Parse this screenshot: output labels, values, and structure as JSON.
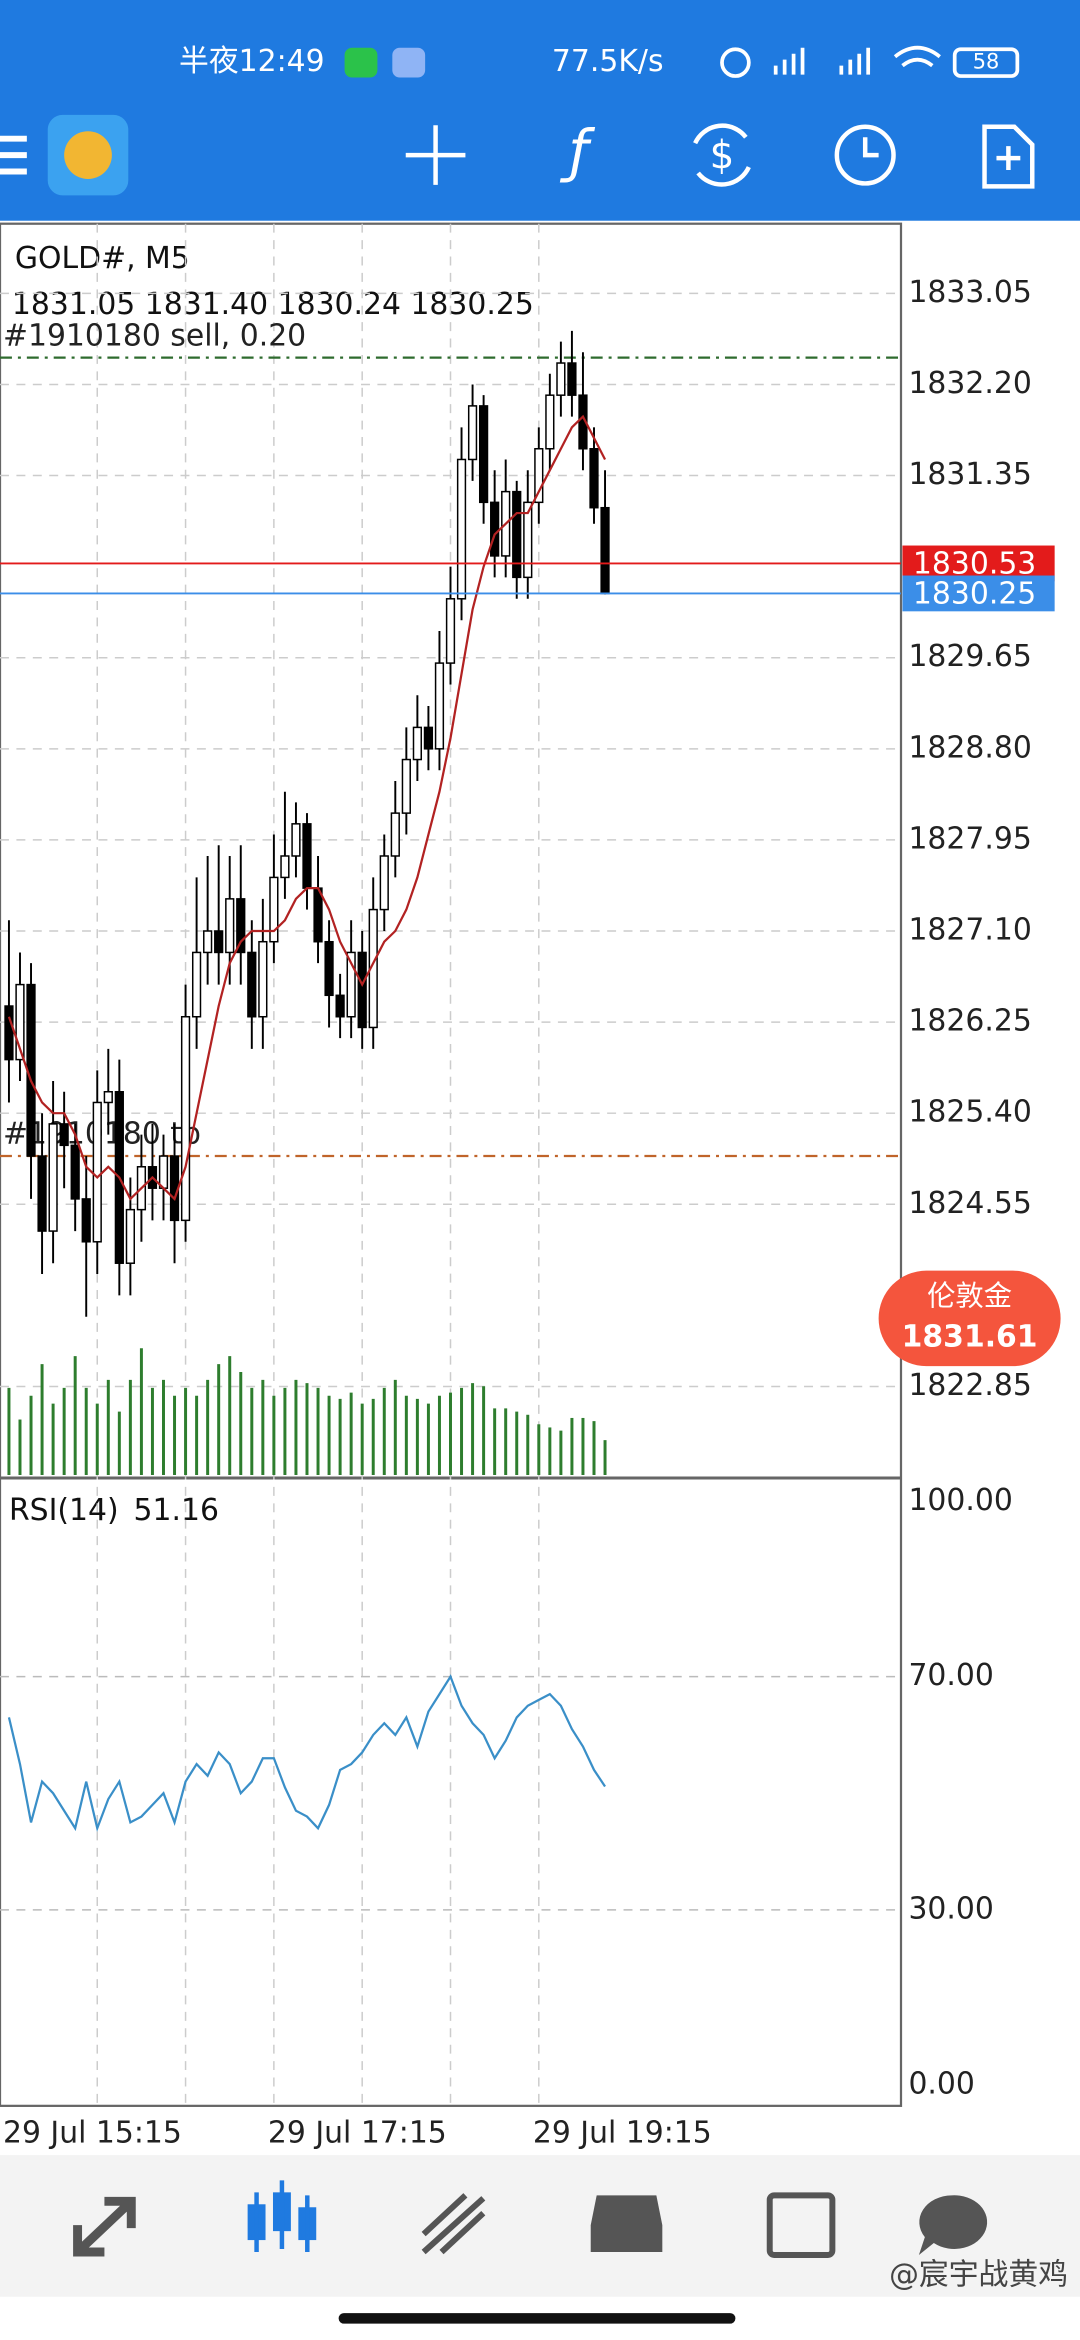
{
  "status_bar": {
    "time": "半夜12:49",
    "speed": "77.5K/s",
    "battery": "58"
  },
  "chart_data": [
    {
      "type": "candlestick",
      "title": "GOLD#, M5",
      "ohlc_label": "1831.05 1831.40 1830.24 1830.25",
      "categories": [
        "29 Jul 15:15",
        null,
        null,
        null,
        null,
        null,
        null,
        null,
        null,
        null,
        null,
        null,
        null,
        null,
        null,
        null,
        null,
        null,
        null,
        null,
        null,
        null,
        null,
        null,
        "29 Jul 17:15",
        null,
        null,
        null,
        null,
        null,
        null,
        null,
        null,
        null,
        null,
        null,
        null,
        null,
        null,
        null,
        null,
        null,
        null,
        null,
        null,
        null,
        null,
        null,
        "29 Jul 19:15",
        null,
        null,
        null,
        null,
        null,
        null
      ],
      "open": [
        1826.4,
        1825.9,
        1826.6,
        1825.0,
        1824.3,
        1825.3,
        1825.1,
        1824.6,
        1824.2,
        1825.5,
        1825.6,
        1824.0,
        1824.5,
        1824.9,
        1824.7,
        1825.0,
        1824.4,
        1826.3,
        1826.9,
        1827.1,
        1826.9,
        1827.4,
        1826.9,
        1826.3,
        1827.0,
        1827.6,
        1827.8,
        1828.1,
        1827.5,
        1827.0,
        1826.5,
        1826.3,
        1826.9,
        1826.2,
        1827.3,
        1827.8,
        1828.2,
        1828.7,
        1829.0,
        1828.8,
        1829.6,
        1830.2,
        1831.5,
        1832.0,
        1831.1,
        1830.6,
        1831.2,
        1830.4,
        1831.1,
        1831.6,
        1832.1,
        1832.4,
        1832.1,
        1831.6,
        1831.05
      ],
      "high": [
        1827.2,
        1826.9,
        1826.8,
        1825.4,
        1825.7,
        1825.6,
        1825.3,
        1825.0,
        1825.8,
        1826.0,
        1825.9,
        1824.8,
        1825.2,
        1825.3,
        1825.2,
        1825.3,
        1826.6,
        1827.6,
        1827.8,
        1827.9,
        1827.8,
        1827.9,
        1827.2,
        1827.4,
        1828.0,
        1828.4,
        1828.3,
        1828.2,
        1827.8,
        1827.2,
        1826.7,
        1827.2,
        1827.1,
        1827.6,
        1828.0,
        1828.5,
        1829.0,
        1829.3,
        1829.2,
        1829.9,
        1830.5,
        1831.8,
        1832.2,
        1832.1,
        1831.4,
        1831.5,
        1831.3,
        1831.4,
        1831.8,
        1832.3,
        1832.6,
        1832.7,
        1832.5,
        1831.8,
        1831.4
      ],
      "low": [
        1825.5,
        1825.7,
        1824.6,
        1823.9,
        1824.0,
        1824.7,
        1824.3,
        1823.5,
        1823.9,
        1825.2,
        1823.7,
        1823.7,
        1824.2,
        1824.4,
        1824.4,
        1824.0,
        1824.2,
        1826.0,
        1826.6,
        1826.6,
        1826.6,
        1826.6,
        1826.0,
        1826.0,
        1826.8,
        1827.4,
        1827.6,
        1827.3,
        1826.8,
        1826.2,
        1826.1,
        1826.1,
        1826.0,
        1826.0,
        1827.1,
        1827.6,
        1828.0,
        1828.5,
        1828.6,
        1828.6,
        1829.4,
        1830.0,
        1831.3,
        1830.9,
        1830.4,
        1830.4,
        1830.2,
        1830.2,
        1830.9,
        1831.4,
        1831.9,
        1831.9,
        1831.4,
        1830.9,
        1830.24
      ],
      "close": [
        1825.9,
        1826.6,
        1825.0,
        1824.3,
        1825.3,
        1825.1,
        1824.6,
        1824.2,
        1825.5,
        1825.6,
        1824.0,
        1824.5,
        1824.9,
        1824.7,
        1825.0,
        1824.4,
        1826.3,
        1826.9,
        1827.1,
        1826.9,
        1827.4,
        1826.9,
        1826.3,
        1827.0,
        1827.6,
        1827.8,
        1828.1,
        1827.5,
        1827.0,
        1826.5,
        1826.3,
        1826.9,
        1826.2,
        1827.3,
        1827.8,
        1828.2,
        1828.7,
        1829.0,
        1828.8,
        1829.6,
        1830.2,
        1831.5,
        1832.0,
        1831.1,
        1830.6,
        1831.2,
        1830.4,
        1831.1,
        1831.6,
        1832.1,
        1832.4,
        1832.1,
        1831.6,
        1831.05,
        1830.25
      ],
      "ma": {
        "color": "#b22222",
        "values": [
          1826.3,
          1826.0,
          1825.7,
          1825.5,
          1825.4,
          1825.4,
          1825.2,
          1824.9,
          1824.8,
          1824.9,
          1824.8,
          1824.6,
          1824.7,
          1824.8,
          1824.7,
          1824.6,
          1824.9,
          1825.4,
          1825.9,
          1826.4,
          1826.8,
          1827.0,
          1827.1,
          1827.1,
          1827.1,
          1827.2,
          1827.4,
          1827.5,
          1827.5,
          1827.3,
          1827.0,
          1826.8,
          1826.6,
          1826.8,
          1827.0,
          1827.1,
          1827.3,
          1827.6,
          1828.0,
          1828.4,
          1828.9,
          1829.5,
          1830.1,
          1830.5,
          1830.8,
          1830.9,
          1831.0,
          1831.0,
          1831.2,
          1831.4,
          1831.6,
          1831.8,
          1831.9,
          1831.7,
          1831.5
        ]
      },
      "volume": {
        "color": "#2e7d2e",
        "values": [
          55,
          35,
          50,
          70,
          45,
          55,
          75,
          55,
          45,
          60,
          40,
          60,
          80,
          55,
          60,
          50,
          55,
          50,
          60,
          70,
          75,
          65,
          55,
          60,
          50,
          55,
          60,
          58,
          55,
          50,
          48,
          52,
          45,
          48,
          55,
          60,
          50,
          48,
          45,
          50,
          52,
          55,
          58,
          56,
          42,
          42,
          40,
          38,
          32,
          30,
          28,
          36,
          36,
          34,
          22
        ]
      },
      "up_color": "#ffffff",
      "down_color": "#000000",
      "ylim": [
        1822.01,
        1833.7
      ],
      "yticks": [
        {
          "value": 1833.05,
          "label": "1833.05"
        },
        {
          "value": 1832.2,
          "label": "1832.20"
        },
        {
          "value": 1831.35,
          "label": "1831.35"
        },
        {
          "value": 1829.65,
          "label": "1829.65"
        },
        {
          "value": 1828.8,
          "label": "1828.80"
        },
        {
          "value": 1827.95,
          "label": "1827.95"
        },
        {
          "value": 1827.1,
          "label": "1827.10"
        },
        {
          "value": 1826.25,
          "label": "1826.25"
        },
        {
          "value": 1825.4,
          "label": "1825.40"
        },
        {
          "value": 1824.55,
          "label": "1824.55"
        },
        {
          "value": 1822.85,
          "label": "1822.85"
        }
      ],
      "grid": true,
      "ask": {
        "value": 1830.53,
        "color": "#e31b1b"
      },
      "bid": {
        "value": 1830.25,
        "color": "#3b8ee8"
      },
      "orders": [
        {
          "label": "#1910180 sell, 0.20",
          "value": 1832.45,
          "color": "#2e6b2e"
        },
        {
          "label": "#1910180 tp",
          "value": 1825.0,
          "color": "#c0642a"
        }
      ]
    },
    {
      "type": "line",
      "title": "RSI(14)",
      "current": 51.16,
      "color": "#3a8fc8",
      "values": [
        63,
        55,
        45,
        52,
        50,
        47,
        44,
        52,
        44,
        49,
        52,
        45,
        46,
        48,
        50,
        45,
        52,
        55,
        53,
        57,
        55,
        50,
        52,
        56,
        56,
        51,
        47,
        46,
        44,
        48,
        54,
        55,
        57,
        60,
        62,
        60,
        63,
        58,
        64,
        67,
        70,
        65,
        62,
        60,
        56,
        59,
        63,
        65,
        66,
        67,
        65,
        61,
        58,
        54,
        51.16
      ],
      "ylim": [
        -3.6,
        103.8
      ],
      "yticks": [
        {
          "value": 100,
          "label": "100.00"
        },
        {
          "value": 70,
          "label": "70.00"
        },
        {
          "value": 30,
          "label": "30.00"
        },
        {
          "value": 0,
          "label": "0.00"
        }
      ],
      "grid": true
    }
  ],
  "quote_bubble": {
    "name": "伦敦金",
    "price": "1831.61"
  },
  "watermark": "@宸宇战黄鸡"
}
